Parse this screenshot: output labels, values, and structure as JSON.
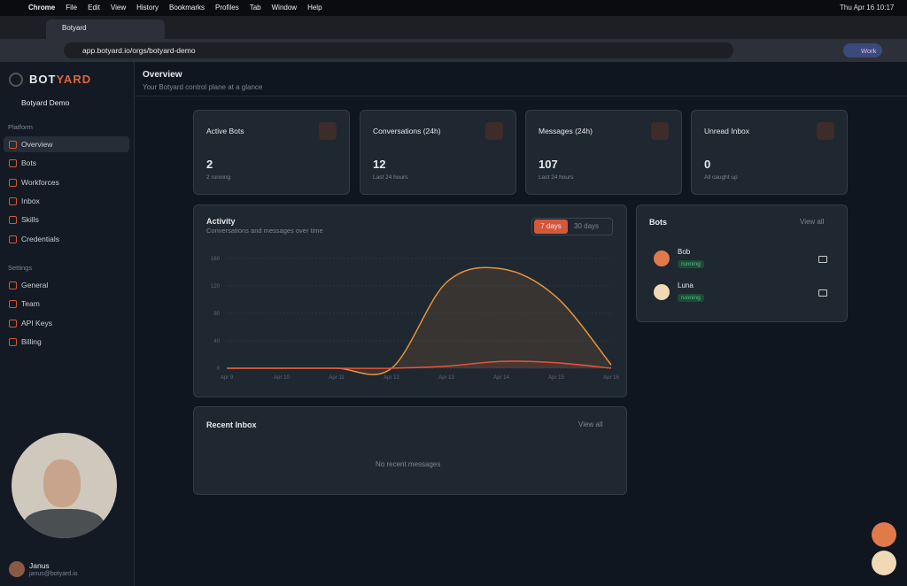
{
  "menu_bar": {
    "items": [
      "Chrome",
      "File",
      "Edit",
      "View",
      "History",
      "Bookmarks",
      "Profiles",
      "Tab",
      "Window",
      "Help"
    ],
    "clock": "Thu Apr 16 10:17"
  },
  "browser": {
    "tab": "Botyard",
    "url": "app.botyard.io/orgs/botyard-demo",
    "profile": "Work"
  },
  "sidebar": {
    "brand_a": "BOT",
    "brand_b": "YARD",
    "org": "Botyard Demo",
    "sections": [
      {
        "label": "Platform",
        "items": [
          "Overview",
          "Bots",
          "Workforces",
          "Inbox",
          "Skills",
          "Credentials"
        ]
      },
      {
        "label": "Settings",
        "items": [
          "General",
          "Team",
          "API Keys",
          "Billing"
        ]
      }
    ],
    "user": {
      "name": "Janus",
      "email": "janus@botyard.io"
    }
  },
  "header": {
    "title": "Overview",
    "subtitle": "Your Botyard control plane at a glance"
  },
  "stats": [
    {
      "label": "Active Bots",
      "value": "2",
      "sub": "2 running"
    },
    {
      "label": "Conversations (24h)",
      "value": "12",
      "sub": "Last 24 hours"
    },
    {
      "label": "Messages (24h)",
      "value": "107",
      "sub": "Last 24 hours"
    },
    {
      "label": "Unread Inbox",
      "value": "0",
      "sub": "All caught up"
    }
  ],
  "activity": {
    "ranges": [
      "7 days",
      "30 days"
    ]
  },
  "chart_data": {
    "type": "area",
    "title": "Activity",
    "subtitle": "Conversations and messages over time",
    "categories": [
      "Apr 9",
      "Apr 10",
      "Apr 11",
      "Apr 12",
      "Apr 13",
      "Apr 14",
      "Apr 15",
      "Apr 16"
    ],
    "series": [
      {
        "color": "#e8923a",
        "values": [
          0,
          0,
          0,
          0,
          125,
          145,
          104,
          5
        ]
      },
      {
        "color": "#e0553a",
        "values": [
          0,
          0,
          0,
          0,
          3,
          10,
          8,
          0
        ]
      }
    ],
    "ylim": [
      0,
      160
    ],
    "yticks": [
      0,
      40,
      80,
      120,
      160
    ],
    "grid": true
  },
  "bots": {
    "title": "Bots",
    "view_all": "View all",
    "items": [
      {
        "name": "Bob",
        "status": "running"
      },
      {
        "name": "Luna",
        "status": "running"
      }
    ]
  },
  "inbox": {
    "title": "Recent Inbox",
    "view_all": "View all",
    "empty": "No recent messages"
  }
}
